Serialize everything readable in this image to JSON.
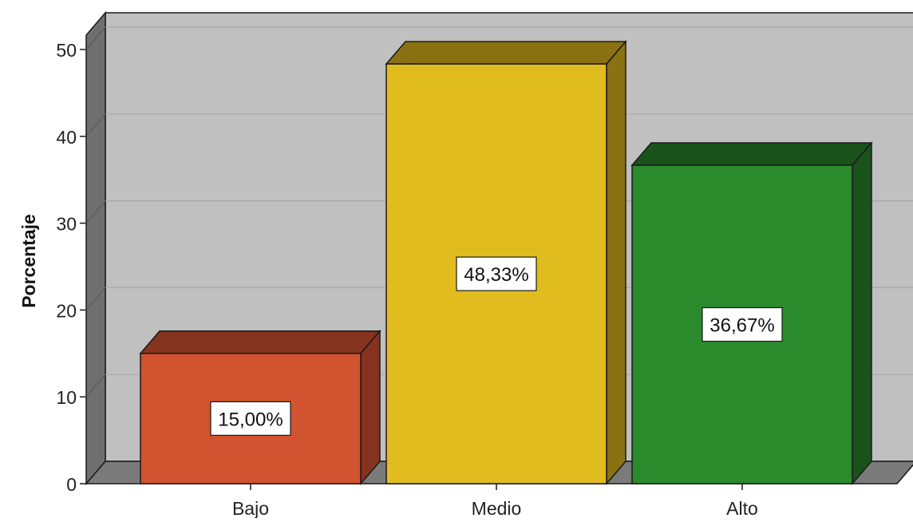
{
  "chart_data": {
    "type": "bar",
    "title": "",
    "xlabel": "",
    "ylabel": "Porcentaje",
    "categories": [
      "Bajo",
      "Medio",
      "Alto"
    ],
    "values": [
      15.0,
      48.33,
      36.67
    ],
    "data_labels": [
      "15,00%",
      "48,33%",
      "36,67%"
    ],
    "ylim": [
      0,
      50
    ],
    "yticks": [
      "0",
      "10",
      "20",
      "30",
      "40",
      "50"
    ],
    "grid": true,
    "legend": "none",
    "colors": {
      "bars": [
        "#d2532f",
        "#e0bc1f",
        "#2a8a2c"
      ],
      "bar_tops": [
        "#85331f",
        "#8a7212",
        "#1a521c"
      ],
      "bar_sides": [
        "#85331f",
        "#8a7212",
        "#1a521c"
      ],
      "plot_back": "#c0c0c0",
      "plot_wall": "#6f6f6f",
      "plot_floor": "#7b7b7b",
      "grid": "#a8a8a8",
      "label_box": "#ffffff",
      "outline": "#1a1a1a"
    }
  }
}
